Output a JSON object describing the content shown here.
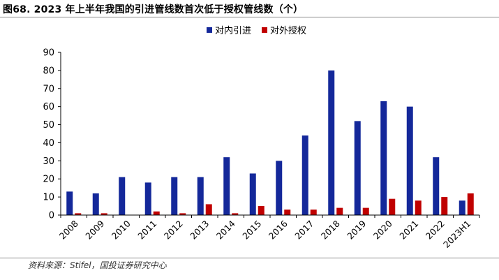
{
  "figure": {
    "title": "图68. 2023 年上半年我国的引进管线数首次低于授权管线数（个）",
    "source": "资料来源：Stifel，国投证券研究中心"
  },
  "colors": {
    "series_in": "#14289a",
    "series_out": "#c00000",
    "axis": "#000000",
    "rule": "#8c8c8c"
  },
  "chart_data": {
    "type": "bar",
    "title": "",
    "xlabel": "",
    "ylabel": "",
    "categories": [
      "2008",
      "2009",
      "2010",
      "2011",
      "2012",
      "2013",
      "2014",
      "2015",
      "2016",
      "2017",
      "2018",
      "2019",
      "2020",
      "2021",
      "2022",
      "2023H1"
    ],
    "series": [
      {
        "name": "对内引进",
        "color": "#14289a",
        "values": [
          13,
          12,
          21,
          18,
          21,
          21,
          32,
          23,
          30,
          44,
          80,
          52,
          63,
          60,
          32,
          8
        ]
      },
      {
        "name": "对外授权",
        "color": "#c00000",
        "values": [
          1,
          1,
          0,
          2,
          1,
          6,
          1,
          5,
          3,
          3,
          4,
          4,
          9,
          8,
          10,
          12
        ]
      }
    ],
    "ylim": [
      0,
      90
    ],
    "yticks": [
      0,
      10,
      20,
      30,
      40,
      50,
      60,
      70,
      80,
      90
    ],
    "grid": false,
    "legend_position": "top-center"
  }
}
